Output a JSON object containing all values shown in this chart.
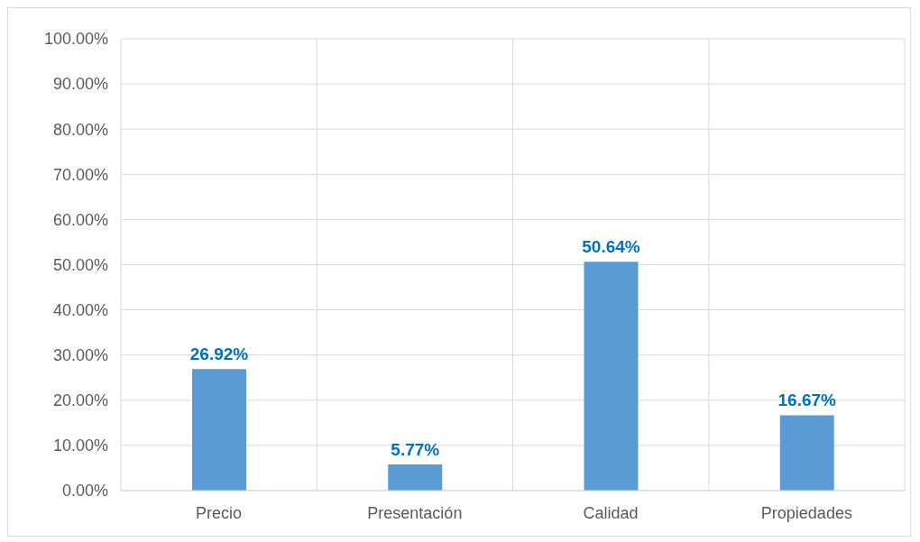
{
  "chart_data": {
    "type": "bar",
    "categories": [
      "Precio",
      "Presentación",
      "Calidad",
      "Propiedades"
    ],
    "values": [
      26.92,
      5.77,
      50.64,
      16.67
    ],
    "value_labels": [
      "26.92%",
      "5.77%",
      "50.64%",
      "16.67%"
    ],
    "color": "#5b9bd5",
    "ylim": [
      0,
      100
    ],
    "yticks": [
      {
        "value": 0,
        "label": "0.00%"
      },
      {
        "value": 10,
        "label": "10.00%"
      },
      {
        "value": 20,
        "label": "20.00%"
      },
      {
        "value": 30,
        "label": "30.00%"
      },
      {
        "value": 40,
        "label": "40.00%"
      },
      {
        "value": 50,
        "label": "50.00%"
      },
      {
        "value": 60,
        "label": "60.00%"
      },
      {
        "value": 70,
        "label": "70.00%"
      },
      {
        "value": 80,
        "label": "80.00%"
      },
      {
        "value": 90,
        "label": "90.00%"
      },
      {
        "value": 100,
        "label": "100.00%"
      }
    ],
    "grid": true
  }
}
